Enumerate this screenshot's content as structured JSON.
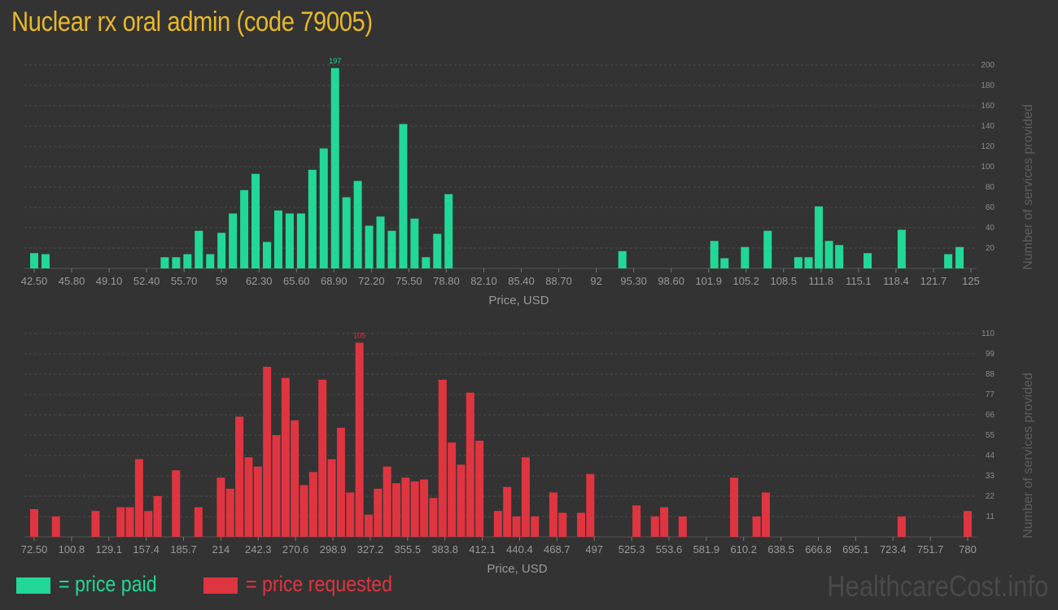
{
  "title": "Nuclear rx oral admin (code 79005)",
  "watermark": "HealthcareCost.info",
  "legend": [
    {
      "label": "= price paid",
      "color": "#21d897"
    },
    {
      "label": "= price requested",
      "color": "#df3540"
    }
  ],
  "chart_data": [
    {
      "type": "bar",
      "color": "#21d897",
      "xlabel": "Price, USD",
      "ylabel": "Number of services provided",
      "grid": true,
      "x_tick_labels": [
        "42.50",
        "45.80",
        "49.10",
        "52.40",
        "55.70",
        "59",
        "62.30",
        "65.60",
        "68.90",
        "72.20",
        "75.50",
        "78.80",
        "82.10",
        "85.40",
        "88.70",
        "92",
        "95.30",
        "98.60",
        "101.9",
        "105.2",
        "108.5",
        "111.8",
        "115.1",
        "118.4",
        "121.7",
        "125"
      ],
      "y_ticks": [
        20,
        40,
        60,
        80,
        100,
        120,
        140,
        160,
        180,
        200
      ],
      "ylim": [
        0,
        200
      ],
      "xlim": [
        42.5,
        125
      ],
      "max_label": "197",
      "bars": [
        {
          "x": 42.5,
          "y": 15
        },
        {
          "x": 43.5,
          "y": 14
        },
        {
          "x": 54.0,
          "y": 11
        },
        {
          "x": 55.0,
          "y": 11
        },
        {
          "x": 56.0,
          "y": 14
        },
        {
          "x": 57.0,
          "y": 37
        },
        {
          "x": 58.0,
          "y": 14
        },
        {
          "x": 59.0,
          "y": 35
        },
        {
          "x": 60.0,
          "y": 54
        },
        {
          "x": 61.0,
          "y": 77
        },
        {
          "x": 62.0,
          "y": 93
        },
        {
          "x": 63.0,
          "y": 26
        },
        {
          "x": 64.0,
          "y": 57
        },
        {
          "x": 65.0,
          "y": 54
        },
        {
          "x": 66.0,
          "y": 54
        },
        {
          "x": 67.0,
          "y": 97
        },
        {
          "x": 68.0,
          "y": 118
        },
        {
          "x": 69.0,
          "y": 197
        },
        {
          "x": 70.0,
          "y": 70
        },
        {
          "x": 71.0,
          "y": 86
        },
        {
          "x": 72.0,
          "y": 42
        },
        {
          "x": 73.0,
          "y": 51
        },
        {
          "x": 74.0,
          "y": 37
        },
        {
          "x": 75.0,
          "y": 142
        },
        {
          "x": 76.0,
          "y": 49
        },
        {
          "x": 77.0,
          "y": 11
        },
        {
          "x": 78.0,
          "y": 34
        },
        {
          "x": 79.0,
          "y": 73
        },
        {
          "x": 94.3,
          "y": 17
        },
        {
          "x": 102.4,
          "y": 27
        },
        {
          "x": 103.3,
          "y": 10
        },
        {
          "x": 105.1,
          "y": 21
        },
        {
          "x": 107.1,
          "y": 37
        },
        {
          "x": 109.8,
          "y": 11
        },
        {
          "x": 110.7,
          "y": 11
        },
        {
          "x": 111.6,
          "y": 61
        },
        {
          "x": 112.5,
          "y": 27
        },
        {
          "x": 113.4,
          "y": 23
        },
        {
          "x": 115.9,
          "y": 15
        },
        {
          "x": 118.9,
          "y": 38
        },
        {
          "x": 123.0,
          "y": 14
        },
        {
          "x": 124.0,
          "y": 21
        }
      ]
    },
    {
      "type": "bar",
      "color": "#df3540",
      "xlabel": "Price, USD",
      "ylabel": "Number of services provided",
      "grid": true,
      "x_tick_labels": [
        "72.50",
        "100.8",
        "129.1",
        "157.4",
        "185.7",
        "214",
        "242.3",
        "270.6",
        "298.9",
        "327.2",
        "355.5",
        "383.8",
        "412.1",
        "440.4",
        "468.7",
        "497",
        "525.3",
        "553.6",
        "581.9",
        "610.2",
        "638.5",
        "666.8",
        "695.1",
        "723.4",
        "751.7",
        "780"
      ],
      "y_ticks": [
        11,
        22,
        33,
        44,
        55,
        66,
        77,
        88,
        99,
        110
      ],
      "ylim": [
        0,
        110
      ],
      "xlim": [
        72.5,
        780
      ],
      "max_label": "105",
      "bars": [
        {
          "x": 72.5,
          "y": 15
        },
        {
          "x": 89.0,
          "y": 11
        },
        {
          "x": 119.0,
          "y": 14
        },
        {
          "x": 138.0,
          "y": 16
        },
        {
          "x": 145.0,
          "y": 16
        },
        {
          "x": 152.0,
          "y": 42
        },
        {
          "x": 159.0,
          "y": 14
        },
        {
          "x": 166.0,
          "y": 22
        },
        {
          "x": 180.0,
          "y": 36
        },
        {
          "x": 197.0,
          "y": 16
        },
        {
          "x": 214.0,
          "y": 32
        },
        {
          "x": 221.0,
          "y": 26
        },
        {
          "x": 228.0,
          "y": 65
        },
        {
          "x": 235.0,
          "y": 43
        },
        {
          "x": 242.0,
          "y": 38
        },
        {
          "x": 249.0,
          "y": 92
        },
        {
          "x": 256.0,
          "y": 55
        },
        {
          "x": 263.0,
          "y": 86
        },
        {
          "x": 270.0,
          "y": 63
        },
        {
          "x": 277.0,
          "y": 28
        },
        {
          "x": 284.0,
          "y": 35
        },
        {
          "x": 291.0,
          "y": 85
        },
        {
          "x": 298.0,
          "y": 42
        },
        {
          "x": 305.0,
          "y": 59
        },
        {
          "x": 312.0,
          "y": 24
        },
        {
          "x": 319.0,
          "y": 105
        },
        {
          "x": 326.0,
          "y": 12
        },
        {
          "x": 333.0,
          "y": 26
        },
        {
          "x": 340.0,
          "y": 38
        },
        {
          "x": 347.0,
          "y": 29
        },
        {
          "x": 354.0,
          "y": 32
        },
        {
          "x": 361.0,
          "y": 30
        },
        {
          "x": 368.0,
          "y": 31
        },
        {
          "x": 375.0,
          "y": 21
        },
        {
          "x": 382.0,
          "y": 85
        },
        {
          "x": 389.0,
          "y": 51
        },
        {
          "x": 396.0,
          "y": 39
        },
        {
          "x": 403.0,
          "y": 78
        },
        {
          "x": 410.0,
          "y": 52
        },
        {
          "x": 424.0,
          "y": 14
        },
        {
          "x": 431.0,
          "y": 27
        },
        {
          "x": 438.0,
          "y": 11
        },
        {
          "x": 445.0,
          "y": 43
        },
        {
          "x": 452.0,
          "y": 11
        },
        {
          "x": 466.0,
          "y": 24
        },
        {
          "x": 473.0,
          "y": 13
        },
        {
          "x": 487.0,
          "y": 13
        },
        {
          "x": 494.0,
          "y": 34
        },
        {
          "x": 529.0,
          "y": 17
        },
        {
          "x": 543.0,
          "y": 11
        },
        {
          "x": 550.0,
          "y": 16
        },
        {
          "x": 564.0,
          "y": 11
        },
        {
          "x": 603.0,
          "y": 32
        },
        {
          "x": 620.0,
          "y": 11
        },
        {
          "x": 627.0,
          "y": 24
        },
        {
          "x": 730.0,
          "y": 11
        },
        {
          "x": 780.0,
          "y": 14
        }
      ]
    }
  ]
}
